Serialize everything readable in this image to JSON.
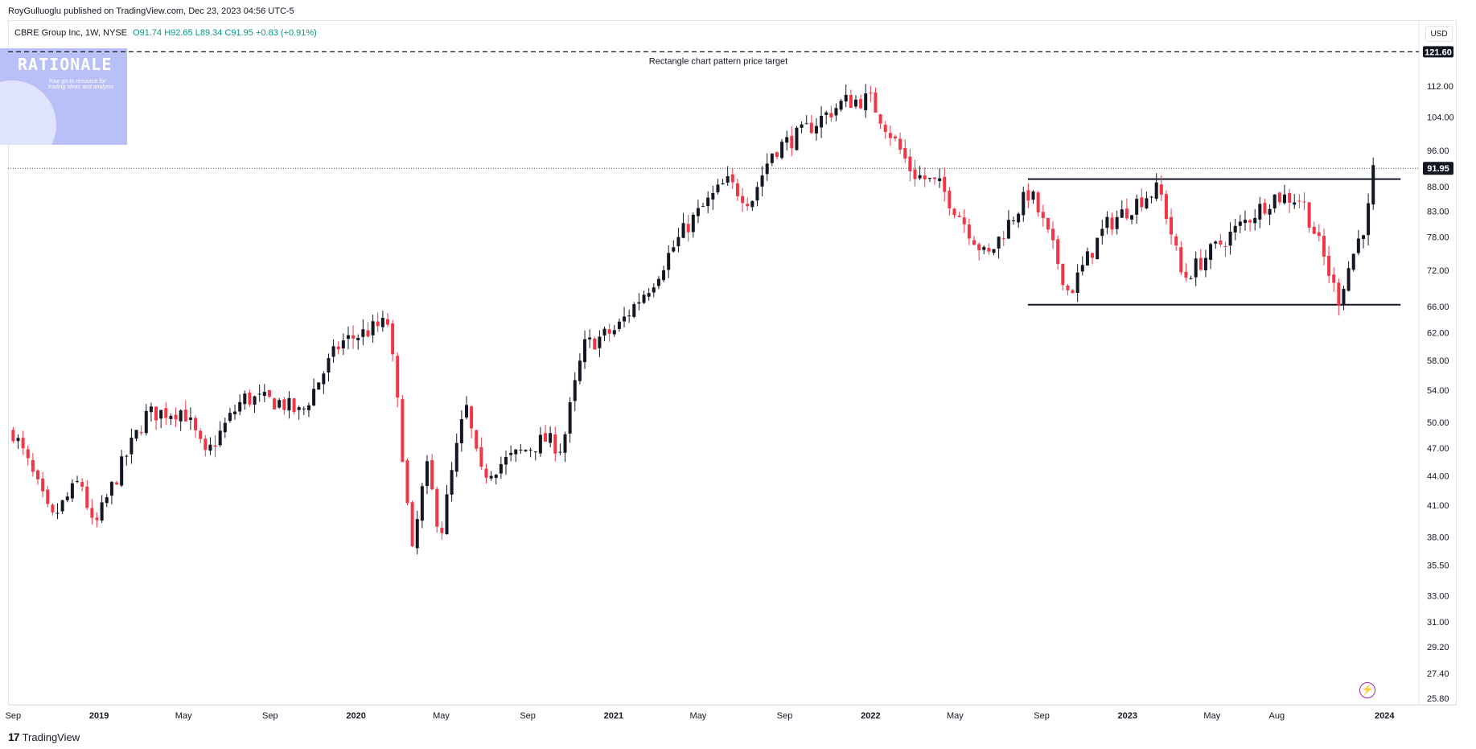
{
  "header": {
    "published_line": "RoyGulluoglu published on TradingView.com, Dec 23, 2023 04:56 UTC-5"
  },
  "legend": {
    "symbol": "CBRE Group Inc, 1W, NYSE",
    "ohlc": "O91.74  H92.65  L89.34  C91.95",
    "change": "+0.83 (+0.91%)"
  },
  "currency_button": "USD",
  "watermark": {
    "title": "RATIONALE",
    "subtitle": "Your go-to resource for trading ideas and analysis"
  },
  "footer": {
    "brand": "TradingView",
    "icon": "tradingview-logo-icon"
  },
  "flash_icon": "lightning-icon",
  "colors": {
    "up": "#131722",
    "down": "#f23645",
    "price_label_bg": "#131722"
  },
  "chart_data": {
    "type": "candlestick",
    "symbol": "CBRE Group Inc",
    "interval": "1W",
    "exchange": "NYSE",
    "scale": "log",
    "y_ticks": [
      "112.00",
      "104.00",
      "96.00",
      "88.00",
      "83.00",
      "78.00",
      "72.00",
      "66.00",
      "62.00",
      "58.00",
      "54.00",
      "50.00",
      "47.00",
      "44.00",
      "41.00",
      "38.00",
      "35.50",
      "33.00",
      "31.00",
      "29.20",
      "27.40",
      "25.80"
    ],
    "x_ticks": [
      {
        "label": "Sep",
        "date": "2018-09"
      },
      {
        "label": "2019",
        "date": "2019-01"
      },
      {
        "label": "May",
        "date": "2019-05"
      },
      {
        "label": "Sep",
        "date": "2019-09"
      },
      {
        "label": "2020",
        "date": "2020-01"
      },
      {
        "label": "May",
        "date": "2020-05"
      },
      {
        "label": "Sep",
        "date": "2020-09"
      },
      {
        "label": "2021",
        "date": "2021-01"
      },
      {
        "label": "May",
        "date": "2021-05"
      },
      {
        "label": "Sep",
        "date": "2021-09"
      },
      {
        "label": "2022",
        "date": "2022-01"
      },
      {
        "label": "May",
        "date": "2022-05"
      },
      {
        "label": "Sep",
        "date": "2022-09"
      },
      {
        "label": "2023",
        "date": "2023-01"
      },
      {
        "label": "May",
        "date": "2023-05"
      },
      {
        "label": "Aug",
        "date": "2023-08"
      },
      {
        "label": "2024",
        "date": "2024-01"
      }
    ],
    "last_price": 91.95,
    "last_price_label": "91.95",
    "target_price": 121.6,
    "target_price_label": "121.60",
    "target_text": "Rectangle chart pattern price target",
    "rectangle": {
      "top": 89.6,
      "bottom": 66.3,
      "start": "2022-08",
      "end": "2024-01"
    },
    "anchors": [
      {
        "date": "2018-09-01",
        "close": 48.9
      },
      {
        "date": "2018-10-25",
        "close": 39.5
      },
      {
        "date": "2018-12-06",
        "close": 43.6
      },
      {
        "date": "2018-12-24",
        "close": 38.5
      },
      {
        "date": "2019-03-10",
        "close": 51.0
      },
      {
        "date": "2019-05-01",
        "close": 51.5
      },
      {
        "date": "2019-06-01",
        "close": 46.0
      },
      {
        "date": "2019-07-25",
        "close": 53.0
      },
      {
        "date": "2019-09-15",
        "close": 52.5
      },
      {
        "date": "2019-10-15",
        "close": 51.0
      },
      {
        "date": "2019-12-10",
        "close": 60.5
      },
      {
        "date": "2020-02-15",
        "close": 63.5
      },
      {
        "date": "2020-03-20",
        "close": 36.0
      },
      {
        "date": "2020-04-10",
        "close": 45.0
      },
      {
        "date": "2020-04-30",
        "close": 38.0
      },
      {
        "date": "2020-06-05",
        "close": 52.0
      },
      {
        "date": "2020-06-25",
        "close": 44.0
      },
      {
        "date": "2020-09-25",
        "close": 48.0
      },
      {
        "date": "2020-10-20",
        "close": 47.0
      },
      {
        "date": "2020-11-20",
        "close": 60.0
      },
      {
        "date": "2021-01-05",
        "close": 62.5
      },
      {
        "date": "2021-02-25",
        "close": 70.0
      },
      {
        "date": "2021-04-15",
        "close": 80.0
      },
      {
        "date": "2021-06-10",
        "close": 89.0
      },
      {
        "date": "2021-07-15",
        "close": 85.0
      },
      {
        "date": "2021-08-15",
        "close": 96.0
      },
      {
        "date": "2021-09-25",
        "close": 100.0
      },
      {
        "date": "2021-11-25",
        "close": 108.0
      },
      {
        "date": "2021-12-31",
        "close": 108.5
      },
      {
        "date": "2022-03-01",
        "close": 91.0
      },
      {
        "date": "2022-04-10",
        "close": 88.0
      },
      {
        "date": "2022-06-15",
        "close": 74.0
      },
      {
        "date": "2022-08-15",
        "close": 87.0
      },
      {
        "date": "2022-10-10",
        "close": 68.0
      },
      {
        "date": "2022-12-01",
        "close": 80.0
      },
      {
        "date": "2023-01-25",
        "close": 86.0
      },
      {
        "date": "2023-02-15",
        "close": 87.5
      },
      {
        "date": "2023-03-20",
        "close": 70.5
      },
      {
        "date": "2023-06-01",
        "close": 79.0
      },
      {
        "date": "2023-07-28",
        "close": 86.0
      },
      {
        "date": "2023-09-05",
        "close": 85.5
      },
      {
        "date": "2023-10-27",
        "close": 67.0
      },
      {
        "date": "2023-11-15",
        "close": 74.0
      },
      {
        "date": "2023-12-08",
        "close": 82.0
      },
      {
        "date": "2023-12-15",
        "close": 91.1
      },
      {
        "date": "2023-12-22",
        "close": 91.95
      }
    ]
  }
}
